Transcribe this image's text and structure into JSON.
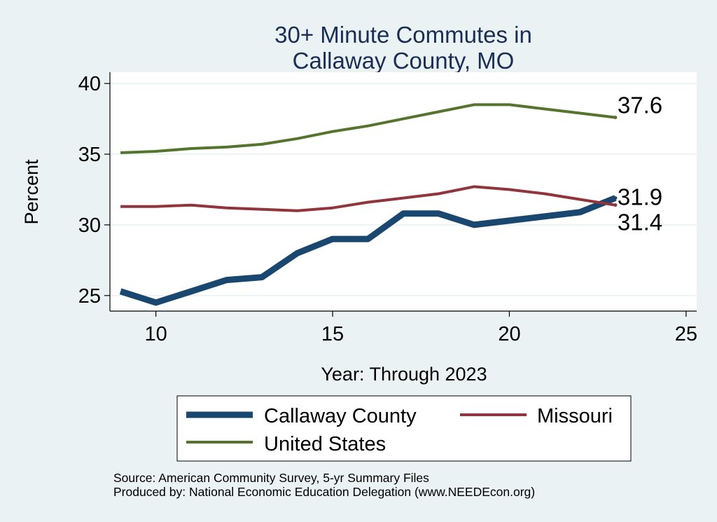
{
  "chart_data": {
    "type": "line",
    "title_lines": [
      "30+ Minute Commutes in",
      "Callaway County, MO"
    ],
    "xlabel": "Year: Through 2023",
    "ylabel": "Percent",
    "xlim": [
      8.7,
      25.3
    ],
    "ylim": [
      23.9,
      40.8
    ],
    "x_ticks": [
      10,
      15,
      20,
      25
    ],
    "y_ticks": [
      25,
      30,
      35,
      40
    ],
    "grid": true,
    "legend_position": "bottom",
    "series": [
      {
        "name": "Callaway County",
        "color": "#1A476F",
        "x": [
          9,
          10,
          11,
          12,
          13,
          14,
          15,
          16,
          17,
          18,
          19,
          20,
          21,
          22,
          23
        ],
        "values": [
          25.3,
          24.5,
          25.3,
          26.1,
          26.3,
          28.0,
          29.0,
          29.0,
          30.8,
          30.8,
          30.0,
          30.3,
          30.6,
          30.9,
          31.9
        ],
        "end_label": "31.9"
      },
      {
        "name": "Missouri",
        "color": "#90353B",
        "x": [
          9,
          10,
          11,
          12,
          13,
          14,
          15,
          16,
          17,
          18,
          19,
          20,
          21,
          22,
          23
        ],
        "values": [
          31.3,
          31.3,
          31.4,
          31.2,
          31.1,
          31.0,
          31.2,
          31.6,
          31.9,
          32.2,
          32.7,
          32.5,
          32.2,
          31.8,
          31.4
        ],
        "end_label": "31.4"
      },
      {
        "name": "United States",
        "color": "#55752F",
        "x": [
          9,
          10,
          11,
          12,
          13,
          14,
          15,
          16,
          17,
          18,
          19,
          20,
          21,
          22,
          23
        ],
        "values": [
          35.1,
          35.2,
          35.4,
          35.5,
          35.7,
          36.1,
          36.6,
          37.0,
          37.5,
          38.0,
          38.5,
          38.5,
          38.2,
          37.9,
          37.6
        ],
        "end_label": "37.6"
      }
    ],
    "notes": [
      "Source: American Community Survey, 5-yr Summary Files",
      "Produced by: National Economic Education Delegation (www.NEEDEcon.org)"
    ]
  }
}
